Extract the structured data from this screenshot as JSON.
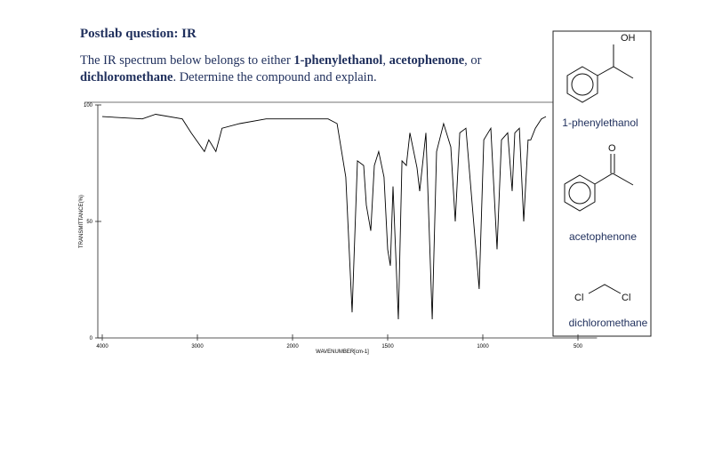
{
  "question": {
    "title": "Postlab question: IR",
    "paragraph": [
      "The IR spectrum below belongs to either ",
      "1-phenylethanol",
      ", ",
      "acetophenone",
      ", or",
      "dichloromethane",
      ". Determine the compound and explain."
    ]
  },
  "structures": [
    {
      "name": "1-phenylethanol",
      "atom": "OH"
    },
    {
      "name": "acetophenone",
      "atom": "O"
    },
    {
      "name": "dichloromethane",
      "atoms": [
        "Cl",
        "Cl"
      ]
    }
  ],
  "chart_data": {
    "type": "line",
    "xlabel": "WAVENUMBER[cm-1]",
    "ylabel": "TRANSMITTANCE(%)",
    "xlim": [
      4000,
      400
    ],
    "ylim": [
      0,
      100
    ],
    "xticks": [
      4000,
      3000,
      2000,
      1500,
      1000,
      500
    ],
    "yticks": [
      0,
      50,
      100
    ],
    "color": "#000000",
    "x": [
      4000,
      3579,
      3439,
      3159,
      3065,
      2926,
      2880,
      2806,
      2741,
      2556,
      2278,
      2000,
      1813,
      1766,
      1720,
      1687,
      1659,
      1626,
      1612,
      1589,
      1570,
      1547,
      1519,
      1500,
      1486,
      1472,
      1444,
      1425,
      1402,
      1383,
      1346,
      1332,
      1299,
      1266,
      1243,
      1206,
      1168,
      1145,
      1121,
      1089,
      1019,
      995,
      958,
      925,
      902,
      869,
      846,
      832,
      808,
      785,
      762,
      748,
      724,
      692,
      668
    ],
    "values": [
      95,
      94,
      96,
      94,
      88,
      80,
      85,
      80,
      90,
      92,
      94,
      94,
      94,
      92,
      69,
      11,
      76,
      74,
      57,
      46,
      74,
      80,
      69,
      38,
      31,
      65,
      8,
      76,
      74,
      88,
      73,
      63,
      88,
      8,
      80,
      92,
      82,
      50,
      88,
      90,
      21,
      85,
      90,
      38,
      85,
      88,
      63,
      88,
      90,
      50,
      85,
      85,
      90,
      94,
      95
    ]
  }
}
